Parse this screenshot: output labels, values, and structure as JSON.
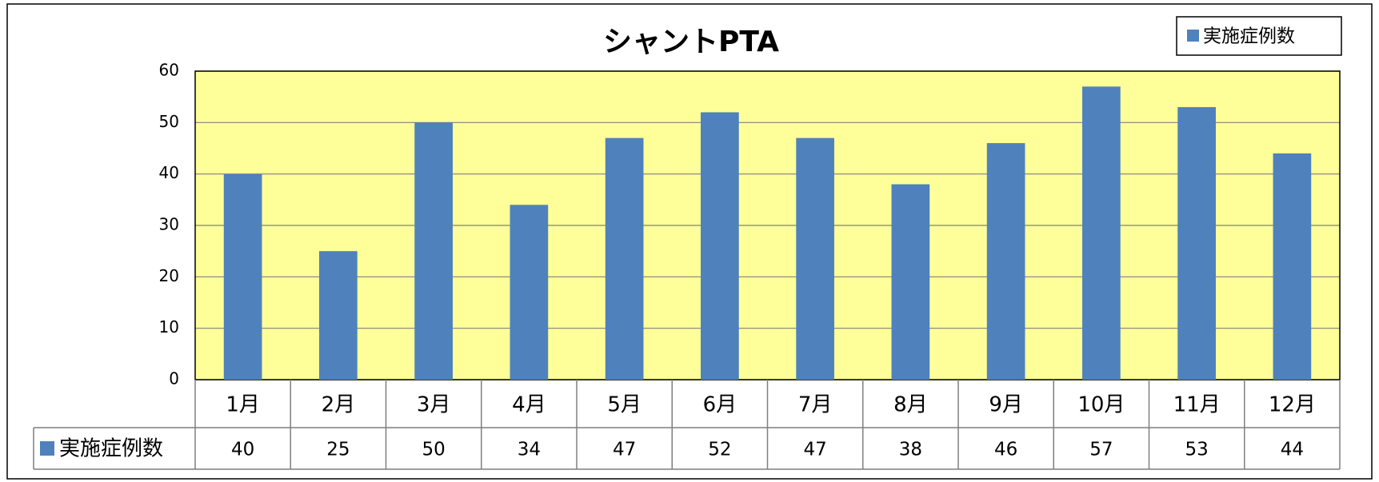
{
  "chart_data": {
    "type": "bar",
    "title": "シャントPTA",
    "categories": [
      "1月",
      "2月",
      "3月",
      "4月",
      "5月",
      "6月",
      "7月",
      "8月",
      "9月",
      "10月",
      "11月",
      "12月"
    ],
    "series": [
      {
        "name": "実施症例数",
        "color": "#4f81bd",
        "values": [
          40,
          25,
          50,
          34,
          47,
          52,
          47,
          38,
          46,
          57,
          53,
          44
        ]
      }
    ],
    "ylim": [
      0,
      60
    ],
    "yticks": [
      0,
      10,
      20,
      30,
      40,
      50,
      60
    ],
    "grid": true,
    "legend": "top-right",
    "plot_background": "#ffff99",
    "data_table": true
  }
}
